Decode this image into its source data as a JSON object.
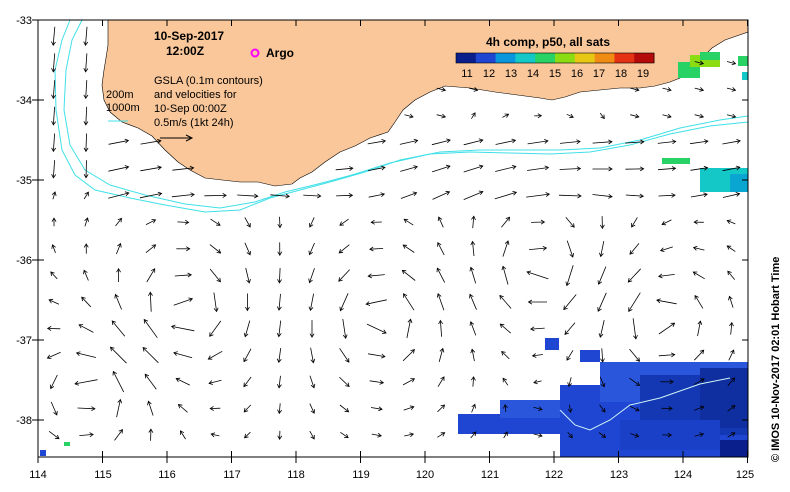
{
  "title": {
    "date": "10-Sep-2017",
    "time": "12:00Z"
  },
  "legend": {
    "argo_label": "Argo",
    "contours": [
      "200m",
      "1000m"
    ],
    "gsla_lines": [
      "GSLA (0.1m contours)",
      "and velocities for",
      "10-Sep 00:00Z",
      "0.5m/s (1kt 24h)"
    ],
    "colorbar_title": "4h comp, p50, all sats",
    "colorbar_ticks": [
      "11",
      "12",
      "13",
      "14",
      "15",
      "16",
      "17",
      "18",
      "19"
    ],
    "colorbar_colors": [
      "#0a1e8c",
      "#1e46d2",
      "#0a96dc",
      "#14c8c8",
      "#28d264",
      "#8cdc14",
      "#e6c814",
      "#f08c14",
      "#e63214",
      "#b40a0a"
    ]
  },
  "credit": "© IMOS 10-Nov-2017 02:01 Hobart Time",
  "axes": {
    "x_ticks": [
      "114",
      "115",
      "116",
      "117",
      "118",
      "119",
      "120",
      "121",
      "122",
      "123",
      "124",
      "125"
    ],
    "y_ticks": [
      "-33",
      "-34",
      "-35",
      "-36",
      "-37",
      "-38"
    ]
  },
  "colors": {
    "land": "#f9c79a",
    "ocean": "#ffffff",
    "contour": "#40e0e8",
    "argo": "#ff00ff",
    "sst_blue": "#1e46d2",
    "sst_cyan": "#14c8c8",
    "sst_green": "#28d264"
  }
}
